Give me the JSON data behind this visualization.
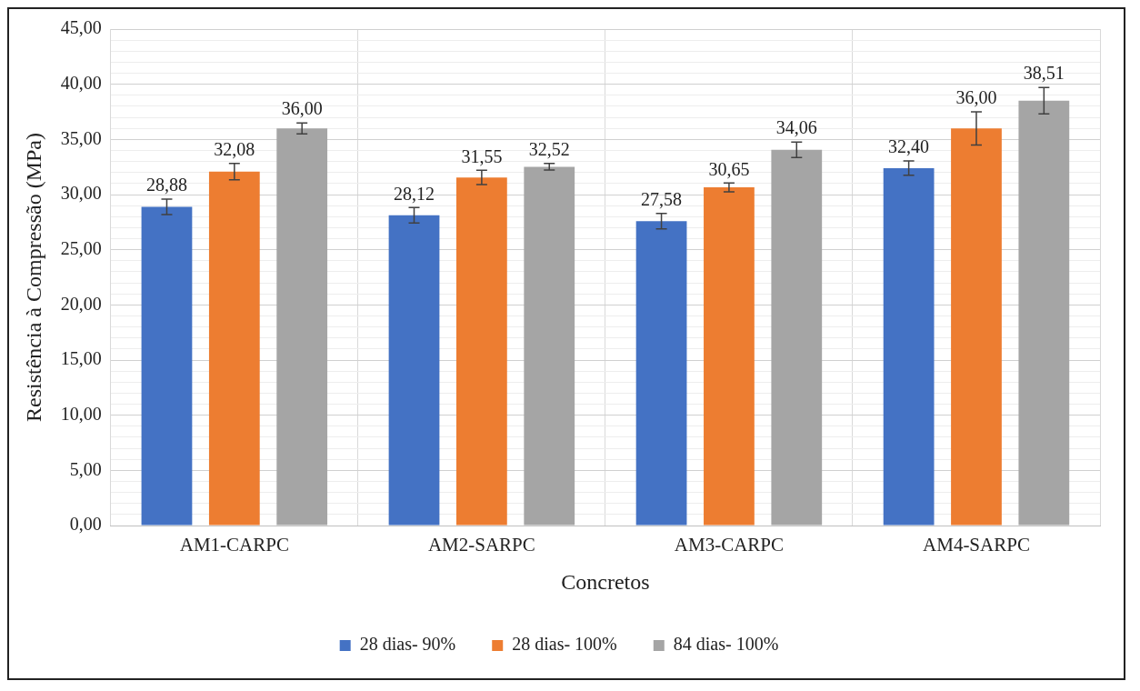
{
  "chart_data": {
    "type": "bar",
    "xlabel": "Concretos",
    "ylabel": "Resistência à Compressão (MPa)",
    "categories": [
      "AM1-CARPC",
      "AM2-SARPC",
      "AM3-CARPC",
      "AM4-SARPC"
    ],
    "series": [
      {
        "name": "28 dias- 90%",
        "color": "#4472c4",
        "values": [
          28.88,
          28.12,
          27.58,
          32.4
        ],
        "value_labels": [
          "28,88",
          "28,12",
          "27,58",
          "32,40"
        ],
        "errors": [
          0.7,
          0.7,
          0.7,
          0.65
        ]
      },
      {
        "name": "28 dias- 100%",
        "color": "#ed7d31",
        "values": [
          32.08,
          31.55,
          30.65,
          36.0
        ],
        "value_labels": [
          "32,08",
          "31,55",
          "30,65",
          "36,00"
        ],
        "errors": [
          0.75,
          0.65,
          0.4,
          1.5
        ]
      },
      {
        "name": "84 dias- 100%",
        "color": "#a5a5a5",
        "values": [
          36.0,
          32.52,
          34.06,
          38.51
        ],
        "value_labels": [
          "36,00",
          "32,52",
          "34,06",
          "38,51"
        ],
        "errors": [
          0.5,
          0.3,
          0.7,
          1.2
        ]
      }
    ],
    "ylim": [
      0,
      45
    ],
    "yticks": [
      {
        "value": 0,
        "label": "0,00"
      },
      {
        "value": 1,
        "label": null
      },
      {
        "value": 2,
        "label": null
      },
      {
        "value": 3,
        "label": null
      },
      {
        "value": 4,
        "label": null
      },
      {
        "value": 5,
        "label": "5,00"
      },
      {
        "value": 6,
        "label": null
      },
      {
        "value": 7,
        "label": null
      },
      {
        "value": 8,
        "label": null
      },
      {
        "value": 9,
        "label": null
      },
      {
        "value": 10,
        "label": "10,00"
      },
      {
        "value": 11,
        "label": null
      },
      {
        "value": 12,
        "label": null
      },
      {
        "value": 13,
        "label": null
      },
      {
        "value": 14,
        "label": null
      },
      {
        "value": 15,
        "label": "15,00"
      },
      {
        "value": 16,
        "label": null
      },
      {
        "value": 17,
        "label": null
      },
      {
        "value": 18,
        "label": null
      },
      {
        "value": 19,
        "label": null
      },
      {
        "value": 20,
        "label": "20,00"
      },
      {
        "value": 21,
        "label": null
      },
      {
        "value": 22,
        "label": null
      },
      {
        "value": 23,
        "label": null
      },
      {
        "value": 24,
        "label": null
      },
      {
        "value": 25,
        "label": "25,00"
      },
      {
        "value": 26,
        "label": null
      },
      {
        "value": 27,
        "label": null
      },
      {
        "value": 28,
        "label": null
      },
      {
        "value": 29,
        "label": null
      },
      {
        "value": 30,
        "label": "30,00"
      },
      {
        "value": 31,
        "label": null
      },
      {
        "value": 32,
        "label": null
      },
      {
        "value": 33,
        "label": null
      },
      {
        "value": 34,
        "label": null
      },
      {
        "value": 35,
        "label": "35,00"
      },
      {
        "value": 36,
        "label": null
      },
      {
        "value": 37,
        "label": null
      },
      {
        "value": 38,
        "label": null
      },
      {
        "value": 39,
        "label": null
      },
      {
        "value": 40,
        "label": "40,00"
      },
      {
        "value": 41,
        "label": null
      },
      {
        "value": 42,
        "label": null
      },
      {
        "value": 43,
        "label": null
      },
      {
        "value": 44,
        "label": null
      },
      {
        "value": 45,
        "label": "45,00"
      }
    ],
    "grid": true,
    "legend": "bottom"
  }
}
